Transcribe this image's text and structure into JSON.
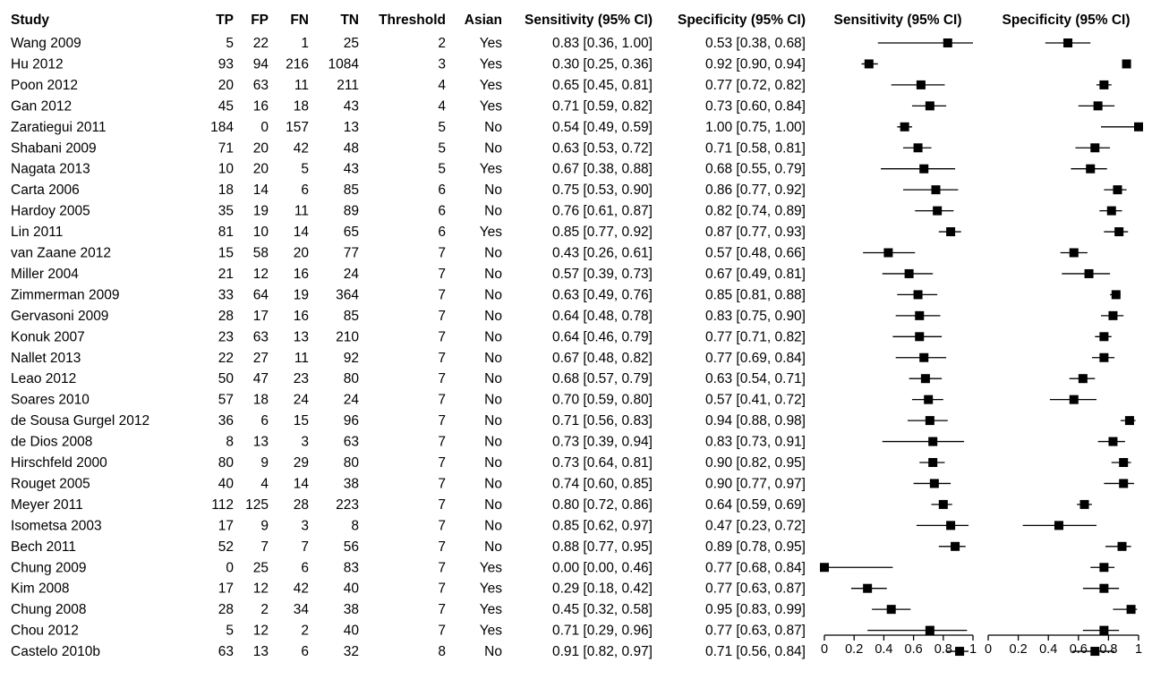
{
  "chart_data": {
    "type": "table",
    "columns": [
      "Study",
      "TP",
      "FP",
      "FN",
      "TN",
      "Threshold",
      "Asian",
      "Sensitivity (95% CI)",
      "Specificity (95% CI)"
    ],
    "forest_titles": [
      "Sensitivity (95% CI)",
      "Specificity (95% CI)"
    ],
    "xlim": [
      0,
      1
    ],
    "xticks": [
      "0",
      "0.2",
      "0.4",
      "0.6",
      "0.8",
      "1"
    ],
    "grid": false,
    "rows": [
      {
        "study": "Wang 2009",
        "tp": "5",
        "fp": "22",
        "fn": "1",
        "tn": "25",
        "threshold": "2",
        "asian": "Yes",
        "sens_text": "0.83 [0.36, 1.00]",
        "spec_text": "0.53 [0.38, 0.68]",
        "sens": [
          0.83,
          0.36,
          1.0
        ],
        "spec": [
          0.53,
          0.38,
          0.68
        ]
      },
      {
        "study": "Hu 2012",
        "tp": "93",
        "fp": "94",
        "fn": "216",
        "tn": "1084",
        "threshold": "3",
        "asian": "Yes",
        "sens_text": "0.30 [0.25, 0.36]",
        "spec_text": "0.92 [0.90, 0.94]",
        "sens": [
          0.3,
          0.25,
          0.36
        ],
        "spec": [
          0.92,
          0.9,
          0.94
        ]
      },
      {
        "study": "Poon 2012",
        "tp": "20",
        "fp": "63",
        "fn": "11",
        "tn": "211",
        "threshold": "4",
        "asian": "Yes",
        "sens_text": "0.65 [0.45, 0.81]",
        "spec_text": "0.77 [0.72, 0.82]",
        "sens": [
          0.65,
          0.45,
          0.81
        ],
        "spec": [
          0.77,
          0.72,
          0.82
        ]
      },
      {
        "study": "Gan 2012",
        "tp": "45",
        "fp": "16",
        "fn": "18",
        "tn": "43",
        "threshold": "4",
        "asian": "Yes",
        "sens_text": "0.71 [0.59, 0.82]",
        "spec_text": "0.73 [0.60, 0.84]",
        "sens": [
          0.71,
          0.59,
          0.82
        ],
        "spec": [
          0.73,
          0.6,
          0.84
        ]
      },
      {
        "study": "Zaratiegui 2011",
        "tp": "184",
        "fp": "0",
        "fn": "157",
        "tn": "13",
        "threshold": "5",
        "asian": "No",
        "sens_text": "0.54 [0.49, 0.59]",
        "spec_text": "1.00 [0.75, 1.00]",
        "sens": [
          0.54,
          0.49,
          0.59
        ],
        "spec": [
          1.0,
          0.75,
          1.0
        ]
      },
      {
        "study": "Shabani 2009",
        "tp": "71",
        "fp": "20",
        "fn": "42",
        "tn": "48",
        "threshold": "5",
        "asian": "No",
        "sens_text": "0.63 [0.53, 0.72]",
        "spec_text": "0.71 [0.58, 0.81]",
        "sens": [
          0.63,
          0.53,
          0.72
        ],
        "spec": [
          0.71,
          0.58,
          0.81
        ]
      },
      {
        "study": "Nagata 2013",
        "tp": "10",
        "fp": "20",
        "fn": "5",
        "tn": "43",
        "threshold": "5",
        "asian": "Yes",
        "sens_text": "0.67 [0.38, 0.88]",
        "spec_text": "0.68 [0.55, 0.79]",
        "sens": [
          0.67,
          0.38,
          0.88
        ],
        "spec": [
          0.68,
          0.55,
          0.79
        ]
      },
      {
        "study": "Carta 2006",
        "tp": "18",
        "fp": "14",
        "fn": "6",
        "tn": "85",
        "threshold": "6",
        "asian": "No",
        "sens_text": "0.75 [0.53, 0.90]",
        "spec_text": "0.86 [0.77, 0.92]",
        "sens": [
          0.75,
          0.53,
          0.9
        ],
        "spec": [
          0.86,
          0.77,
          0.92
        ]
      },
      {
        "study": "Hardoy 2005",
        "tp": "35",
        "fp": "19",
        "fn": "11",
        "tn": "89",
        "threshold": "6",
        "asian": "No",
        "sens_text": "0.76 [0.61, 0.87]",
        "spec_text": "0.82 [0.74, 0.89]",
        "sens": [
          0.76,
          0.61,
          0.87
        ],
        "spec": [
          0.82,
          0.74,
          0.89
        ]
      },
      {
        "study": "Lin 2011",
        "tp": "81",
        "fp": "10",
        "fn": "14",
        "tn": "65",
        "threshold": "6",
        "asian": "Yes",
        "sens_text": "0.85 [0.77, 0.92]",
        "spec_text": "0.87 [0.77, 0.93]",
        "sens": [
          0.85,
          0.77,
          0.92
        ],
        "spec": [
          0.87,
          0.77,
          0.93
        ]
      },
      {
        "study": "van Zaane 2012",
        "tp": "15",
        "fp": "58",
        "fn": "20",
        "tn": "77",
        "threshold": "7",
        "asian": "No",
        "sens_text": "0.43 [0.26, 0.61]",
        "spec_text": "0.57 [0.48, 0.66]",
        "sens": [
          0.43,
          0.26,
          0.61
        ],
        "spec": [
          0.57,
          0.48,
          0.66
        ]
      },
      {
        "study": "Miller 2004",
        "tp": "21",
        "fp": "12",
        "fn": "16",
        "tn": "24",
        "threshold": "7",
        "asian": "No",
        "sens_text": "0.57 [0.39, 0.73]",
        "spec_text": "0.67 [0.49, 0.81]",
        "sens": [
          0.57,
          0.39,
          0.73
        ],
        "spec": [
          0.67,
          0.49,
          0.81
        ]
      },
      {
        "study": "Zimmerman 2009",
        "tp": "33",
        "fp": "64",
        "fn": "19",
        "tn": "364",
        "threshold": "7",
        "asian": "No",
        "sens_text": "0.63 [0.49, 0.76]",
        "spec_text": "0.85 [0.81, 0.88]",
        "sens": [
          0.63,
          0.49,
          0.76
        ],
        "spec": [
          0.85,
          0.81,
          0.88
        ]
      },
      {
        "study": "Gervasoni 2009",
        "tp": "28",
        "fp": "17",
        "fn": "16",
        "tn": "85",
        "threshold": "7",
        "asian": "No",
        "sens_text": "0.64 [0.48, 0.78]",
        "spec_text": "0.83 [0.75, 0.90]",
        "sens": [
          0.64,
          0.48,
          0.78
        ],
        "spec": [
          0.83,
          0.75,
          0.9
        ]
      },
      {
        "study": "Konuk 2007",
        "tp": "23",
        "fp": "63",
        "fn": "13",
        "tn": "210",
        "threshold": "7",
        "asian": "No",
        "sens_text": "0.64 [0.46, 0.79]",
        "spec_text": "0.77 [0.71, 0.82]",
        "sens": [
          0.64,
          0.46,
          0.79
        ],
        "spec": [
          0.77,
          0.71,
          0.82
        ]
      },
      {
        "study": "Nallet 2013",
        "tp": "22",
        "fp": "27",
        "fn": "11",
        "tn": "92",
        "threshold": "7",
        "asian": "No",
        "sens_text": "0.67 [0.48, 0.82]",
        "spec_text": "0.77 [0.69, 0.84]",
        "sens": [
          0.67,
          0.48,
          0.82
        ],
        "spec": [
          0.77,
          0.69,
          0.84
        ]
      },
      {
        "study": "Leao 2012",
        "tp": "50",
        "fp": "47",
        "fn": "23",
        "tn": "80",
        "threshold": "7",
        "asian": "No",
        "sens_text": "0.68 [0.57, 0.79]",
        "spec_text": "0.63 [0.54, 0.71]",
        "sens": [
          0.68,
          0.57,
          0.79
        ],
        "spec": [
          0.63,
          0.54,
          0.71
        ]
      },
      {
        "study": "Soares 2010",
        "tp": "57",
        "fp": "18",
        "fn": "24",
        "tn": "24",
        "threshold": "7",
        "asian": "No",
        "sens_text": "0.70 [0.59, 0.80]",
        "spec_text": "0.57 [0.41, 0.72]",
        "sens": [
          0.7,
          0.59,
          0.8
        ],
        "spec": [
          0.57,
          0.41,
          0.72
        ]
      },
      {
        "study": "de Sousa Gurgel 2012",
        "tp": "36",
        "fp": "6",
        "fn": "15",
        "tn": "96",
        "threshold": "7",
        "asian": "No",
        "sens_text": "0.71 [0.56, 0.83]",
        "spec_text": "0.94 [0.88, 0.98]",
        "sens": [
          0.71,
          0.56,
          0.83
        ],
        "spec": [
          0.94,
          0.88,
          0.98
        ]
      },
      {
        "study": "de Dios 2008",
        "tp": "8",
        "fp": "13",
        "fn": "3",
        "tn": "63",
        "threshold": "7",
        "asian": "No",
        "sens_text": "0.73 [0.39, 0.94]",
        "spec_text": "0.83 [0.73, 0.91]",
        "sens": [
          0.73,
          0.39,
          0.94
        ],
        "spec": [
          0.83,
          0.73,
          0.91
        ]
      },
      {
        "study": "Hirschfeld 2000",
        "tp": "80",
        "fp": "9",
        "fn": "29",
        "tn": "80",
        "threshold": "7",
        "asian": "No",
        "sens_text": "0.73 [0.64, 0.81]",
        "spec_text": "0.90 [0.82, 0.95]",
        "sens": [
          0.73,
          0.64,
          0.81
        ],
        "spec": [
          0.9,
          0.82,
          0.95
        ]
      },
      {
        "study": "Rouget 2005",
        "tp": "40",
        "fp": "4",
        "fn": "14",
        "tn": "38",
        "threshold": "7",
        "asian": "No",
        "sens_text": "0.74 [0.60, 0.85]",
        "spec_text": "0.90 [0.77, 0.97]",
        "sens": [
          0.74,
          0.6,
          0.85
        ],
        "spec": [
          0.9,
          0.77,
          0.97
        ]
      },
      {
        "study": "Meyer 2011",
        "tp": "112",
        "fp": "125",
        "fn": "28",
        "tn": "223",
        "threshold": "7",
        "asian": "No",
        "sens_text": "0.80 [0.72, 0.86]",
        "spec_text": "0.64 [0.59, 0.69]",
        "sens": [
          0.8,
          0.72,
          0.86
        ],
        "spec": [
          0.64,
          0.59,
          0.69
        ]
      },
      {
        "study": "Isometsa 2003",
        "tp": "17",
        "fp": "9",
        "fn": "3",
        "tn": "8",
        "threshold": "7",
        "asian": "No",
        "sens_text": "0.85 [0.62, 0.97]",
        "spec_text": "0.47 [0.23, 0.72]",
        "sens": [
          0.85,
          0.62,
          0.97
        ],
        "spec": [
          0.47,
          0.23,
          0.72
        ]
      },
      {
        "study": "Bech 2011",
        "tp": "52",
        "fp": "7",
        "fn": "7",
        "tn": "56",
        "threshold": "7",
        "asian": "No",
        "sens_text": "0.88 [0.77, 0.95]",
        "spec_text": "0.89 [0.78, 0.95]",
        "sens": [
          0.88,
          0.77,
          0.95
        ],
        "spec": [
          0.89,
          0.78,
          0.95
        ]
      },
      {
        "study": "Chung 2009",
        "tp": "0",
        "fp": "25",
        "fn": "6",
        "tn": "83",
        "threshold": "7",
        "asian": "Yes",
        "sens_text": "0.00 [0.00, 0.46]",
        "spec_text": "0.77 [0.68, 0.84]",
        "sens": [
          0.0,
          0.0,
          0.46
        ],
        "spec": [
          0.77,
          0.68,
          0.84
        ]
      },
      {
        "study": "Kim 2008",
        "tp": "17",
        "fp": "12",
        "fn": "42",
        "tn": "40",
        "threshold": "7",
        "asian": "Yes",
        "sens_text": "0.29 [0.18, 0.42]",
        "spec_text": "0.77 [0.63, 0.87]",
        "sens": [
          0.29,
          0.18,
          0.42
        ],
        "spec": [
          0.77,
          0.63,
          0.87
        ]
      },
      {
        "study": "Chung 2008",
        "tp": "28",
        "fp": "2",
        "fn": "34",
        "tn": "38",
        "threshold": "7",
        "asian": "Yes",
        "sens_text": "0.45 [0.32, 0.58]",
        "spec_text": "0.95 [0.83, 0.99]",
        "sens": [
          0.45,
          0.32,
          0.58
        ],
        "spec": [
          0.95,
          0.83,
          0.99
        ]
      },
      {
        "study": "Chou 2012",
        "tp": "5",
        "fp": "12",
        "fn": "2",
        "tn": "40",
        "threshold": "7",
        "asian": "Yes",
        "sens_text": "0.71 [0.29, 0.96]",
        "spec_text": "0.77 [0.63, 0.87]",
        "sens": [
          0.71,
          0.29,
          0.96
        ],
        "spec": [
          0.77,
          0.63,
          0.87
        ]
      },
      {
        "study": "Castelo 2010b",
        "tp": "63",
        "fp": "13",
        "fn": "6",
        "tn": "32",
        "threshold": "8",
        "asian": "No",
        "sens_text": "0.91 [0.82, 0.97]",
        "spec_text": "0.71 [0.56, 0.84]",
        "sens": [
          0.91,
          0.82,
          0.97
        ],
        "spec": [
          0.71,
          0.56,
          0.84
        ]
      }
    ]
  }
}
